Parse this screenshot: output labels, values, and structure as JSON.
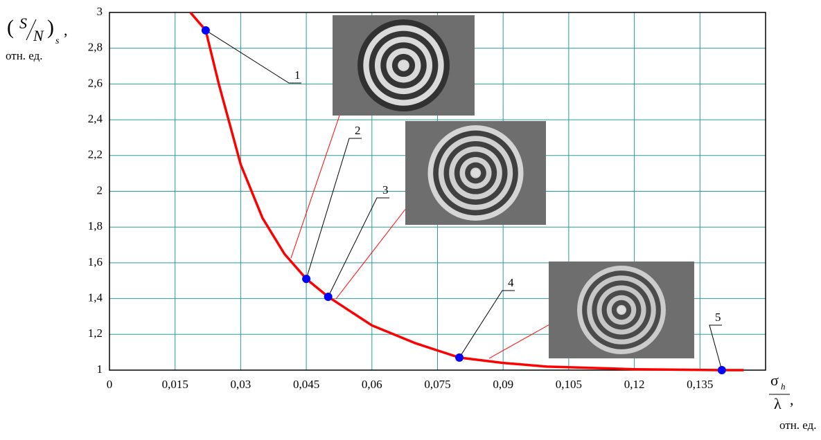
{
  "chart_data": {
    "type": "line",
    "y_label": {
      "numerator": "S",
      "denominator": "N",
      "subscript": "s",
      "comma": ",",
      "unit": "отн. ед."
    },
    "x_label": {
      "numerator": "σ",
      "subscript": "h",
      "denominator": "λ",
      "comma": ",",
      "unit": "отн. ед."
    },
    "xlim": [
      0,
      0.15
    ],
    "xticks": [
      0,
      {
        "value": 0.015,
        "label": "0,015"
      },
      {
        "value": 0.03,
        "label": "0,03"
      },
      {
        "value": 0.045,
        "label": "0,045"
      },
      {
        "value": 0.06,
        "label": "0,06"
      },
      {
        "value": 0.075,
        "label": "0,075"
      },
      {
        "value": 0.09,
        "label": "0,09"
      },
      {
        "value": 0.105,
        "label": "0,105"
      },
      {
        "value": 0.12,
        "label": "0,12"
      },
      {
        "value": 0.135,
        "label": "0,135"
      }
    ],
    "ylim": [
      1,
      3
    ],
    "yticks": [
      1,
      {
        "value": 1.2,
        "label": "1,2"
      },
      {
        "value": 1.4,
        "label": "1,4"
      },
      {
        "value": 1.6,
        "label": "1,6"
      },
      {
        "value": 1.8,
        "label": "1,8"
      },
      2,
      {
        "value": 2.2,
        "label": "2,2"
      },
      {
        "value": 2.4,
        "label": "2,4"
      },
      {
        "value": 2.6,
        "label": "2,6"
      },
      {
        "value": 2.8,
        "label": "2,8"
      },
      3
    ],
    "grid": true,
    "curve": {
      "color": "#ff0000",
      "x": [
        0.0185,
        0.022,
        0.025,
        0.03,
        0.035,
        0.04,
        0.045,
        0.05,
        0.06,
        0.07,
        0.08,
        0.09,
        0.1,
        0.12,
        0.14,
        0.145
      ],
      "values": [
        3,
        2.9,
        2.6,
        2.15,
        1.85,
        1.65,
        1.51,
        1.41,
        1.25,
        1.15,
        1.07,
        1.04,
        1.02,
        1.005,
        1.0,
        1.0
      ]
    },
    "points": {
      "color": "#0000ff",
      "x": [
        0.022,
        0.045,
        0.05,
        0.08,
        0.14
      ],
      "values": [
        2.9,
        1.51,
        1.41,
        1.07,
        1.0
      ],
      "labels": [
        "1",
        "2",
        "3",
        "4",
        "5"
      ]
    }
  }
}
